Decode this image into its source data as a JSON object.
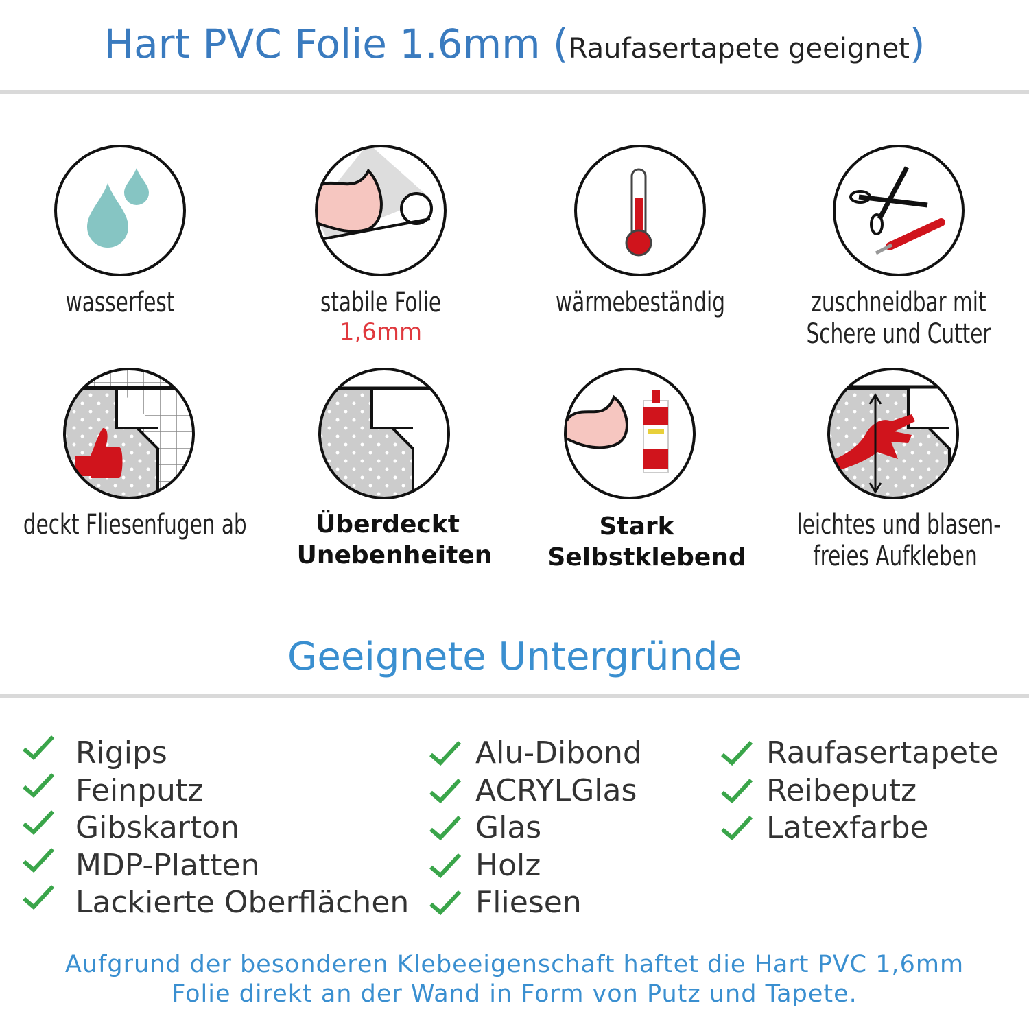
{
  "header": {
    "title": "Hart PVC Folie 1.6mm",
    "paren_open": "(",
    "subtitle": "Raufasertapete geeignet",
    "paren_close": ")"
  },
  "features": [
    {
      "icon": "water-drops-icon",
      "label": "wasserfest"
    },
    {
      "icon": "strong-film-icon",
      "label": "stabile Folie",
      "sublabel": "1,6mm"
    },
    {
      "icon": "thermometer-icon",
      "label": "wärmebeständig"
    },
    {
      "icon": "scissors-cutter-icon",
      "label": "zuschneidbar mit",
      "label2": "Schere und Cutter"
    },
    {
      "icon": "thumbs-up-tiles-icon",
      "label": "deckt Fliesenfugen ab"
    },
    {
      "icon": "peeling-film-icon",
      "label": "Überdeckt",
      "label2": "Unebenheiten"
    },
    {
      "icon": "strong-glue-icon",
      "label": "Stark",
      "label2": "Selbstklebend"
    },
    {
      "icon": "hand-smoothing-icon",
      "label": "leichtes und blasen-",
      "label2": "freies Aufkleben"
    }
  ],
  "surfaces": {
    "title": "Geeignete Untergründe",
    "col1": [
      "Rigips",
      "Feinputz",
      "Gibskarton",
      "MDP-Platten",
      "Lackierte Oberflächen"
    ],
    "col2": [
      "Alu-Dibond",
      "ACRYLGlas",
      "Glas",
      "Holz",
      "Fliesen"
    ],
    "col3": [
      "Raufasertapete",
      "Reibeputz",
      "Latexfarbe"
    ]
  },
  "footer": {
    "line1": "Aufgrund der besonderen Klebeeigenschaft haftet die Hart PVC 1,6mm",
    "line2": "Folie direkt an der Wand in Form von Putz und Tapete."
  },
  "colors": {
    "accent": "#3a7bbf",
    "check": "#3aa54a",
    "red": "#d0141c",
    "drop": "#86c5c3"
  }
}
